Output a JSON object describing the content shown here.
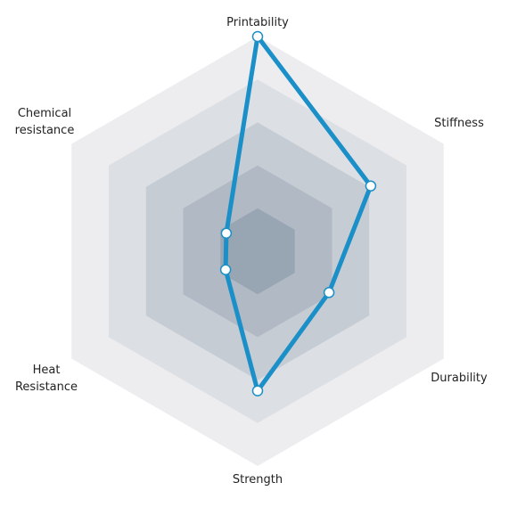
{
  "chart_data": {
    "type": "radar",
    "axes": [
      "Printability",
      "Stiffness",
      "Durability",
      "Strength",
      "Heat Resistance",
      "Chemical resistance"
    ],
    "axis_label_lines": [
      [
        "Printability"
      ],
      [
        "Stiffness"
      ],
      [
        "Durability"
      ],
      [
        "Strength"
      ],
      [
        "Heat",
        "Resistance"
      ],
      [
        "Chemical",
        "resistance"
      ]
    ],
    "rings": 5,
    "rlim": [
      0,
      5
    ],
    "values": [
      5,
      3.04,
      1.92,
      3.25,
      0.86,
      0.84
    ],
    "grid": true,
    "legend": "none"
  },
  "colors": {
    "series_line": "#1a8fc8",
    "marker_fill": "#ffffff",
    "ring_fills": [
      "#ededf0",
      "#dcdfe4",
      "#c6ccd4",
      "#b0b9c4",
      "#98a5b2"
    ]
  }
}
